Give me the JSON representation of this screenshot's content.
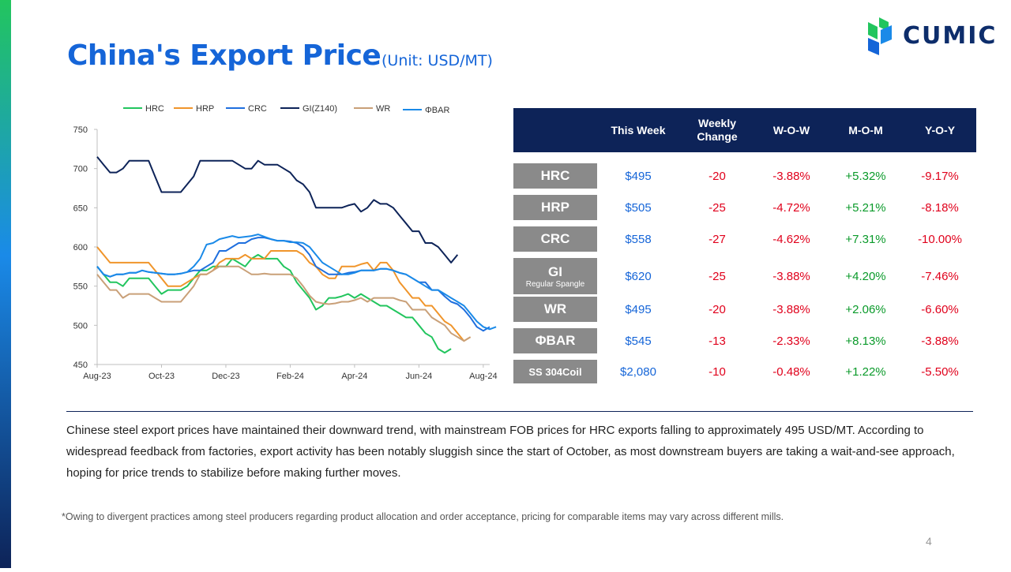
{
  "title": "China's Export Price",
  "unit": "(Unit: USD/MT)",
  "logo_text": "CUMIC",
  "colors": {
    "accent": "#1565d8",
    "header_bg": "#0d2358",
    "label_bg": "#8a8a8a",
    "up": "#0a9a2a",
    "down": "#e0001b"
  },
  "table": {
    "headers": {
      "this_week": "This Week",
      "weekly_change": "Weekly Change",
      "wow": "W-O-W",
      "mom": "M-O-M",
      "yoy": "Y-O-Y"
    },
    "rows": [
      {
        "product": "HRC",
        "sub": "",
        "price": "$495",
        "change": "-20",
        "wow": "-3.88%",
        "mom": "+5.32%",
        "yoy": "-9.17%"
      },
      {
        "product": "HRP",
        "sub": "",
        "price": "$505",
        "change": "-25",
        "wow": "-4.72%",
        "mom": "+5.21%",
        "yoy": "-8.18%"
      },
      {
        "product": "CRC",
        "sub": "",
        "price": "$558",
        "change": "-27",
        "wow": "-4.62%",
        "mom": "+7.31%",
        "yoy": "-10.00%"
      },
      {
        "product": "GI",
        "sub": "Regular Spangle",
        "price": "$620",
        "change": "-25",
        "wow": "-3.88%",
        "mom": "+4.20%",
        "yoy": "-7.46%"
      },
      {
        "product": "WR",
        "sub": "",
        "price": "$495",
        "change": "-20",
        "wow": "-3.88%",
        "mom": "+2.06%",
        "yoy": "-6.60%"
      },
      {
        "product": "ΦBAR",
        "sub": "",
        "price": "$545",
        "change": "-13",
        "wow": "-2.33%",
        "mom": "+8.13%",
        "yoy": "-3.88%"
      },
      {
        "product": "SS 304Coil",
        "sub": "",
        "price": "$2,080",
        "change": "-10",
        "wow": "-0.48%",
        "mom": "+1.22%",
        "yoy": "-5.50%"
      }
    ]
  },
  "paragraph": "Chinese steel export prices have maintained their downward trend, with mainstream FOB prices for HRC exports falling to approximately 495 USD/MT. According to widespread feedback from factories, export activity has been notably sluggish since the start of October, as most downstream buyers are taking a wait-and-see approach, hoping for price trends to stabilize before making further moves.",
  "footnote": "*Owing to divergent practices among steel producers regarding product allocation and order acceptance, pricing for comparable items may vary across different mills.",
  "page_number": "4",
  "chart_data": {
    "type": "line",
    "title": "",
    "xlabel": "",
    "ylabel": "",
    "ylim": [
      450,
      750
    ],
    "yticks": [
      450,
      500,
      550,
      600,
      650,
      700,
      750
    ],
    "xticks": [
      "Aug-23",
      "Oct-23",
      "Dec-23",
      "Feb-24",
      "Apr-24",
      "Jun-24",
      "Aug-24"
    ],
    "xtick_index": [
      0,
      10,
      20,
      30,
      40,
      50,
      60
    ],
    "legend_position": "top",
    "grid": false,
    "series": [
      {
        "name": "HRC",
        "color": "#22c55e",
        "values": [
          575,
          565,
          555,
          555,
          550,
          560,
          560,
          560,
          560,
          550,
          540,
          545,
          545,
          545,
          550,
          560,
          570,
          570,
          575,
          575,
          575,
          585,
          580,
          575,
          585,
          590,
          585,
          585,
          585,
          575,
          570,
          555,
          545,
          535,
          520,
          525,
          535,
          535,
          537,
          540,
          535,
          540,
          535,
          530,
          525,
          525,
          520,
          515,
          510,
          510,
          500,
          490,
          485,
          470,
          465,
          470
        ]
      },
      {
        "name": "HRP",
        "color": "#f0952b",
        "values": [
          600,
          590,
          580,
          580,
          580,
          580,
          580,
          580,
          580,
          570,
          560,
          550,
          550,
          550,
          555,
          560,
          565,
          565,
          570,
          580,
          585,
          585,
          585,
          590,
          585,
          585,
          585,
          595,
          595,
          595,
          595,
          595,
          590,
          580,
          575,
          565,
          560,
          560,
          575,
          575,
          575,
          578,
          580,
          570,
          580,
          580,
          570,
          555,
          545,
          535,
          535,
          525,
          525,
          515,
          505,
          500,
          490,
          480,
          485
        ]
      },
      {
        "name": "CRC",
        "color": "#1f6fde",
        "values": [
          575,
          565,
          562,
          565,
          565,
          567,
          567,
          570,
          568,
          567,
          566,
          565,
          565,
          566,
          568,
          570,
          570,
          575,
          580,
          595,
          595,
          600,
          605,
          605,
          610,
          612,
          612,
          610,
          608,
          608,
          607,
          605,
          600,
          590,
          575,
          570,
          565,
          565,
          565,
          567,
          568,
          570,
          570,
          570,
          572,
          572,
          570,
          567,
          565,
          560,
          555,
          555,
          545,
          545,
          537,
          530,
          527,
          520,
          510,
          498,
          493,
          498
        ]
      },
      {
        "name": "GI(Z140)",
        "color": "#0d2358",
        "values": [
          715,
          705,
          695,
          695,
          700,
          710,
          710,
          710,
          710,
          690,
          670,
          670,
          670,
          670,
          680,
          690,
          710,
          710,
          710,
          710,
          710,
          710,
          705,
          700,
          700,
          710,
          705,
          705,
          705,
          700,
          695,
          685,
          680,
          670,
          650,
          650,
          650,
          650,
          650,
          653,
          655,
          645,
          650,
          660,
          655,
          655,
          650,
          640,
          630,
          620,
          620,
          605,
          605,
          600,
          590,
          580,
          590
        ]
      },
      {
        "name": "WR",
        "color": "#c9a078",
        "values": [
          565,
          555,
          545,
          545,
          535,
          540,
          540,
          540,
          540,
          535,
          530,
          530,
          530,
          530,
          540,
          550,
          565,
          565,
          570,
          575,
          575,
          575,
          575,
          570,
          565,
          565,
          566,
          565,
          565,
          565,
          565,
          560,
          550,
          538,
          530,
          528,
          527,
          528,
          530,
          530,
          532,
          535,
          530,
          535,
          535,
          535,
          535,
          532,
          530,
          520,
          520,
          520,
          510,
          505,
          500,
          490,
          485,
          480,
          485
        ]
      },
      {
        "name": "ΦBAR",
        "color": "#1a8ae8",
        "values": [
          575,
          565,
          562,
          565,
          565,
          567,
          567,
          570,
          568,
          567,
          566,
          565,
          565,
          566,
          568,
          575,
          585,
          603,
          605,
          610,
          612,
          614,
          612,
          613,
          614,
          616,
          613,
          610,
          608,
          608,
          606,
          606,
          605,
          600,
          590,
          580,
          575,
          570,
          565,
          565,
          567,
          570,
          570,
          570,
          572,
          572,
          570,
          567,
          565,
          560,
          555,
          550,
          545,
          545,
          540,
          535,
          530,
          525,
          515,
          505,
          498,
          495,
          498
        ]
      }
    ]
  }
}
